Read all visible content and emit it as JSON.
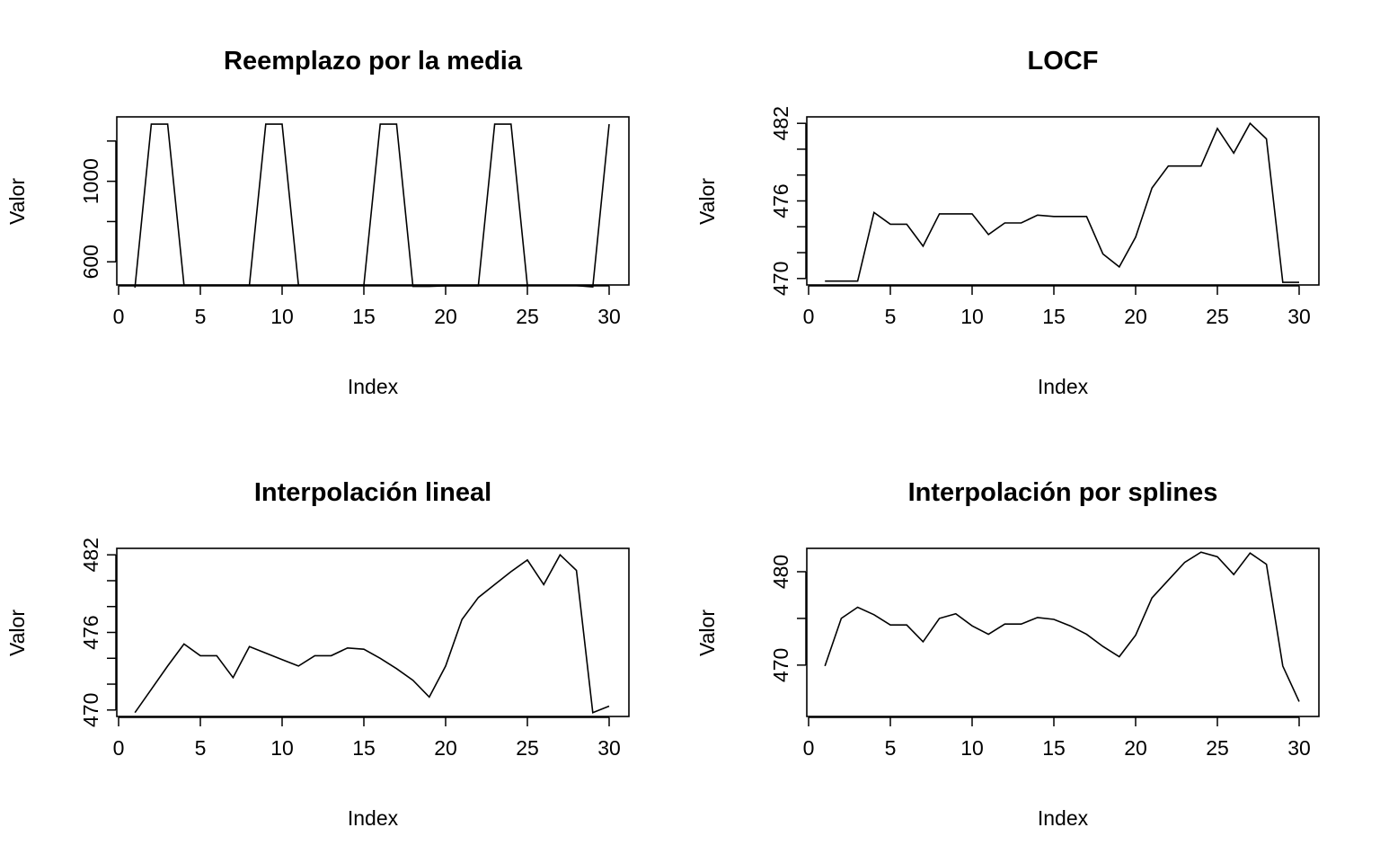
{
  "chart_data": [
    {
      "type": "line",
      "title": "Reemplazo por la media",
      "xlabel": "Index",
      "ylabel": "Valor",
      "xlim": [
        0,
        30
      ],
      "ylim": [
        485,
        1320
      ],
      "x_ticks": [
        0,
        5,
        10,
        15,
        20,
        25,
        30
      ],
      "y_ticks": [
        600,
        800,
        1000,
        1200
      ],
      "y_tick_labels": [
        "600",
        "",
        "1000",
        ""
      ],
      "x": [
        1,
        2,
        3,
        4,
        5,
        6,
        7,
        8,
        9,
        10,
        11,
        12,
        13,
        14,
        15,
        16,
        17,
        18,
        19,
        20,
        21,
        22,
        23,
        24,
        25,
        26,
        27,
        28,
        29,
        30
      ],
      "values": [
        472,
        1284,
        1284,
        484,
        484,
        484,
        484,
        484,
        1284,
        1284,
        484,
        484,
        484,
        484,
        484,
        1284,
        1284,
        478,
        478,
        481,
        481,
        481,
        1284,
        1284,
        482,
        482,
        482,
        482,
        475,
        1284
      ]
    },
    {
      "type": "line",
      "title": "LOCF",
      "xlabel": "Index",
      "ylabel": "Valor",
      "xlim": [
        0,
        30
      ],
      "ylim": [
        469.5,
        482.5
      ],
      "x_ticks": [
        0,
        5,
        10,
        15,
        20,
        25,
        30
      ],
      "y_ticks": [
        470,
        472,
        474,
        476,
        478,
        480,
        482
      ],
      "y_tick_labels": [
        "470",
        "",
        "",
        "476",
        "",
        "",
        "482"
      ],
      "x": [
        1,
        2,
        3,
        4,
        5,
        6,
        7,
        8,
        9,
        10,
        11,
        12,
        13,
        14,
        15,
        16,
        17,
        18,
        19,
        20,
        21,
        22,
        23,
        24,
        25,
        26,
        27,
        28,
        29,
        30
      ],
      "values": [
        469.8,
        469.8,
        469.8,
        475.1,
        474.2,
        474.2,
        472.5,
        475.0,
        475.0,
        475.0,
        473.4,
        474.3,
        474.3,
        474.9,
        474.8,
        474.8,
        474.8,
        471.9,
        470.9,
        473.2,
        477.0,
        478.7,
        478.7,
        478.7,
        481.6,
        479.7,
        482.0,
        480.8,
        469.7,
        469.7
      ]
    },
    {
      "type": "line",
      "title": "Interpolación lineal",
      "xlabel": "Index",
      "ylabel": "Valor",
      "xlim": [
        0,
        30
      ],
      "ylim": [
        469.5,
        482.5
      ],
      "x_ticks": [
        0,
        5,
        10,
        15,
        20,
        25,
        30
      ],
      "y_ticks": [
        470,
        472,
        474,
        476,
        478,
        480,
        482
      ],
      "y_tick_labels": [
        "470",
        "",
        "",
        "476",
        "",
        "",
        "482"
      ],
      "x": [
        1,
        2,
        3,
        4,
        5,
        6,
        7,
        8,
        9,
        10,
        11,
        12,
        13,
        14,
        15,
        16,
        17,
        18,
        19,
        20,
        21,
        22,
        23,
        24,
        25,
        26,
        27,
        28,
        29,
        30
      ],
      "values": [
        469.8,
        471.6,
        473.4,
        475.1,
        474.2,
        474.2,
        472.5,
        474.9,
        474.4,
        473.9,
        473.4,
        474.2,
        474.2,
        474.8,
        474.7,
        474.0,
        473.2,
        472.3,
        471.0,
        473.4,
        477.0,
        478.7,
        479.7,
        480.7,
        481.6,
        479.7,
        482.0,
        480.8,
        469.8,
        470.3
      ]
    },
    {
      "type": "line",
      "title": "Interpolación por splines",
      "xlabel": "Index",
      "ylabel": "Valor",
      "xlim": [
        0,
        30
      ],
      "ylim": [
        464.5,
        482.5
      ],
      "x_ticks": [
        0,
        5,
        10,
        15,
        20,
        25,
        30
      ],
      "y_ticks": [
        470,
        475,
        480
      ],
      "y_tick_labels": [
        "470",
        "",
        "480"
      ],
      "x": [
        1,
        2,
        3,
        4,
        5,
        6,
        7,
        8,
        9,
        10,
        11,
        12,
        13,
        14,
        15,
        16,
        17,
        18,
        19,
        20,
        21,
        22,
        23,
        24,
        25,
        26,
        27,
        28,
        29,
        30
      ],
      "values": [
        469.9,
        475.0,
        476.2,
        475.4,
        474.3,
        474.3,
        472.5,
        475.0,
        475.5,
        474.2,
        473.3,
        474.4,
        474.4,
        475.1,
        474.9,
        474.2,
        473.3,
        472.0,
        470.9,
        473.2,
        477.2,
        479.1,
        481.0,
        482.1,
        481.6,
        479.7,
        482.0,
        480.8,
        469.9,
        466.1
      ]
    }
  ]
}
